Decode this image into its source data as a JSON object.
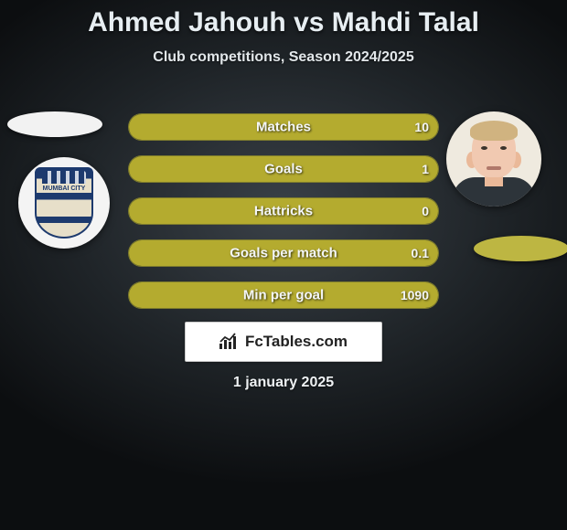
{
  "title": "Ahmed Jahouh vs Mahdi Talal",
  "subtitle": "Club competitions, Season 2024/2025",
  "date": "1 january 2025",
  "brand": "FcTables.com",
  "colors": {
    "bar_fill": "#b4ab2f",
    "bar_border": "#7e7c2d",
    "right_ellipse": "#bdb642",
    "text": "#e7eef2"
  },
  "left": {
    "crest_text": "MUMBAI\nCITY"
  },
  "stats": [
    {
      "label": "Matches",
      "left_value": "",
      "right_value": "10",
      "left_pct": 0,
      "right_pct": 100
    },
    {
      "label": "Goals",
      "left_value": "",
      "right_value": "1",
      "left_pct": 0,
      "right_pct": 100
    },
    {
      "label": "Hattricks",
      "left_value": "",
      "right_value": "0",
      "left_pct": 0,
      "right_pct": 100
    },
    {
      "label": "Goals per match",
      "left_value": "",
      "right_value": "0.1",
      "left_pct": 0,
      "right_pct": 100
    },
    {
      "label": "Min per goal",
      "left_value": "",
      "right_value": "1090",
      "left_pct": 0,
      "right_pct": 100
    }
  ]
}
